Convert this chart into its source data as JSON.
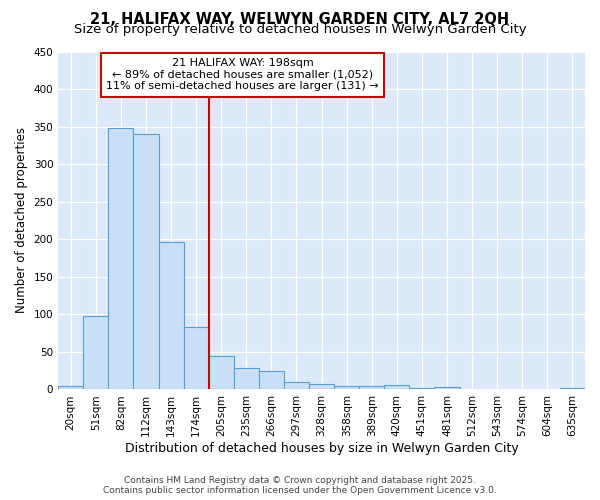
{
  "title": "21, HALIFAX WAY, WELWYN GARDEN CITY, AL7 2QH",
  "subtitle": "Size of property relative to detached houses in Welwyn Garden City",
  "xlabel": "Distribution of detached houses by size in Welwyn Garden City",
  "ylabel": "Number of detached properties",
  "categories": [
    "20sqm",
    "51sqm",
    "82sqm",
    "112sqm",
    "143sqm",
    "174sqm",
    "205sqm",
    "235sqm",
    "266sqm",
    "297sqm",
    "328sqm",
    "358sqm",
    "389sqm",
    "420sqm",
    "451sqm",
    "481sqm",
    "512sqm",
    "543sqm",
    "574sqm",
    "604sqm",
    "635sqm"
  ],
  "values": [
    5,
    98,
    348,
    340,
    197,
    83,
    45,
    28,
    25,
    10,
    7,
    5,
    4,
    6,
    2,
    3,
    1,
    1,
    0,
    1,
    2
  ],
  "bar_color": "#c8dff5",
  "bar_edge_color": "#5a9fd4",
  "ylim": [
    0,
    450
  ],
  "yticks": [
    0,
    50,
    100,
    150,
    200,
    250,
    300,
    350,
    400,
    450
  ],
  "annotation_title": "21 HALIFAX WAY: 198sqm",
  "annotation_line1": "← 89% of detached houses are smaller (1,052)",
  "annotation_line2": "11% of semi-detached houses are larger (131) →",
  "vline_color": "#cc0000",
  "annotation_box_color": "#ffffff",
  "annotation_box_edge": "#cc0000",
  "footer_line1": "Contains HM Land Registry data © Crown copyright and database right 2025.",
  "footer_line2": "Contains public sector information licensed under the Open Government Licence v3.0.",
  "background_color": "#ffffff",
  "plot_bg_color": "#dce9f8",
  "grid_color": "#ffffff",
  "title_fontsize": 10.5,
  "subtitle_fontsize": 9.5,
  "tick_fontsize": 7.5,
  "axis_label_fontsize": 9,
  "ylabel_fontsize": 8.5
}
